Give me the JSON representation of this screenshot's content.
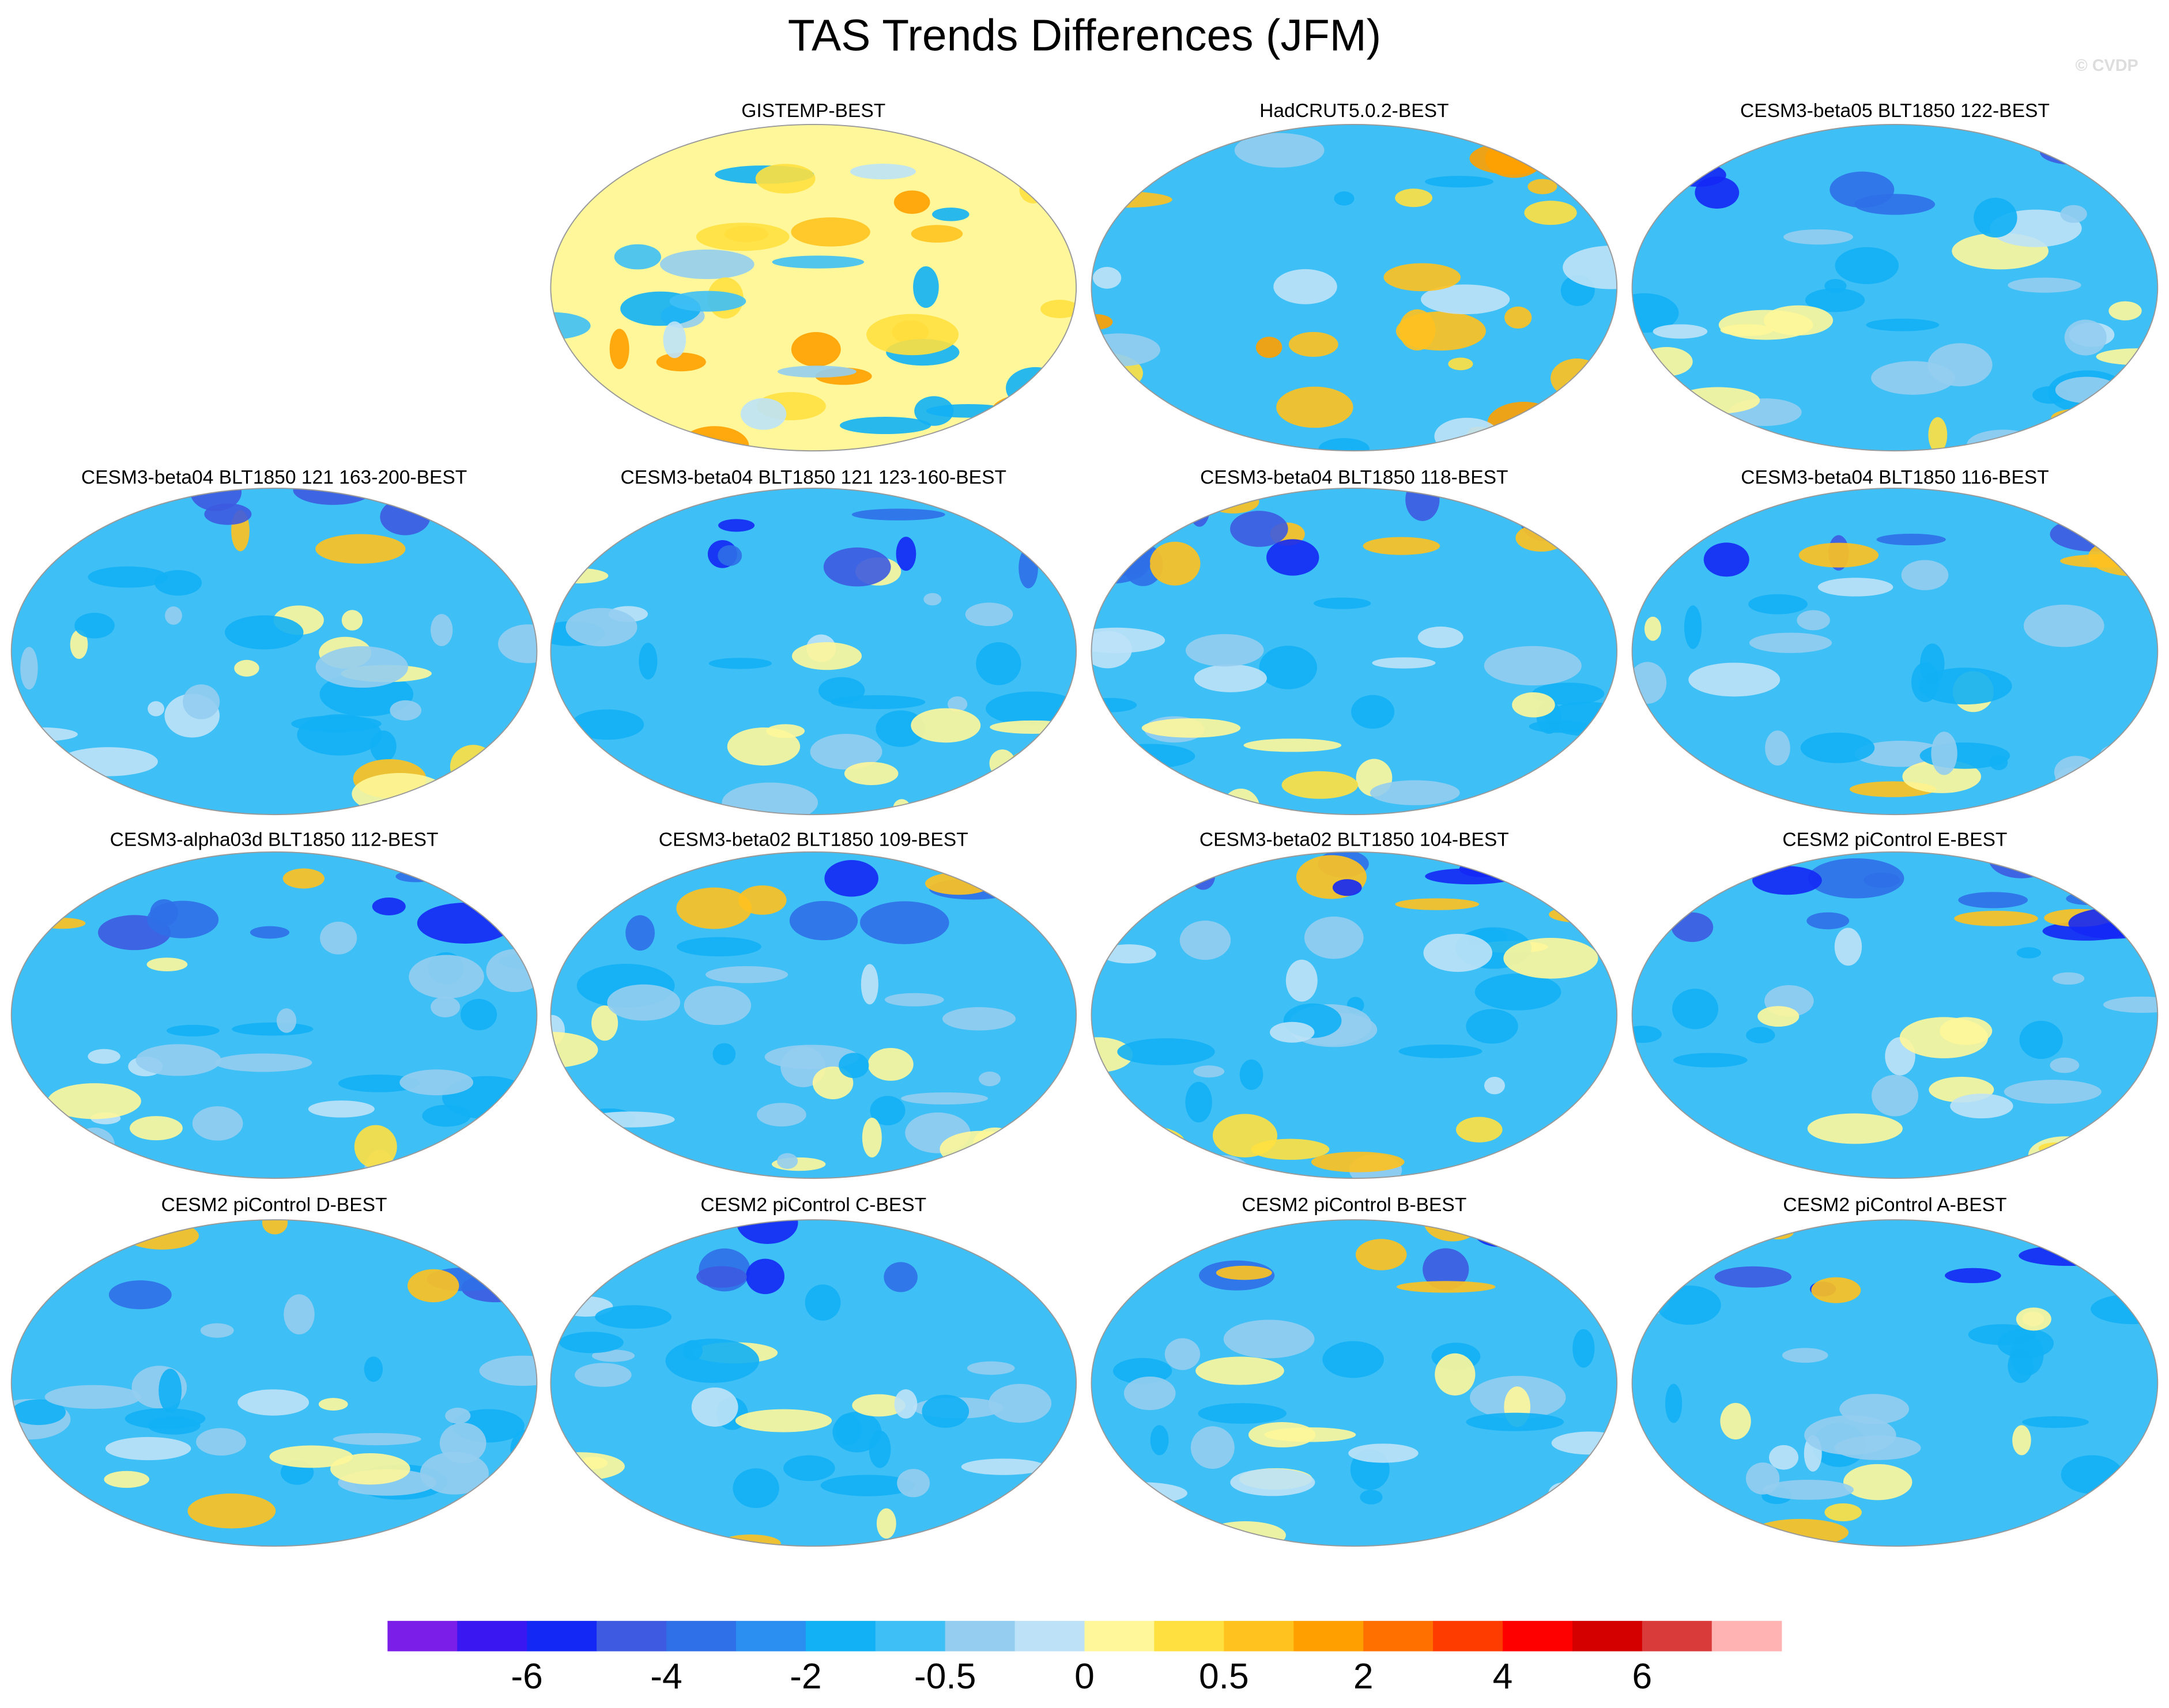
{
  "header": {
    "title": "TAS Trends Differences (JFM)",
    "watermark": "© CVDP"
  },
  "panels": [
    {
      "title": "GISTEMP-BEST"
    },
    {
      "title": "HadCRUT5.0.2-BEST"
    },
    {
      "title": "CESM3-beta05 BLT1850 122-BEST"
    },
    {
      "title": "CESM3-beta04 BLT1850 121 163-200-BEST"
    },
    {
      "title": "CESM3-beta04 BLT1850 121 123-160-BEST"
    },
    {
      "title": "CESM3-beta04 BLT1850 118-BEST"
    },
    {
      "title": "CESM3-beta04 BLT1850 116-BEST"
    },
    {
      "title": "CESM3-alpha03d BLT1850 112-BEST"
    },
    {
      "title": "CESM3-beta02 BLT1850 109-BEST"
    },
    {
      "title": "CESM3-beta02 BLT1850 104-BEST"
    },
    {
      "title": "CESM2 piControl E-BEST"
    },
    {
      "title": "CESM2 piControl D-BEST"
    },
    {
      "title": "CESM2 piControl C-BEST"
    },
    {
      "title": "CESM2 piControl B-BEST"
    },
    {
      "title": "CESM2 piControl A-BEST"
    }
  ],
  "colorbar": {
    "colors": [
      "#7b1fe8",
      "#3a17f0",
      "#1428f5",
      "#3d5ae0",
      "#2f6fe8",
      "#2a8ff0",
      "#12b0f5",
      "#3ebff5",
      "#94cdef",
      "#bde2f7",
      "#fff79a",
      "#ffe040",
      "#ffc21f",
      "#ffa000",
      "#ff7000",
      "#ff3c00",
      "#ff0000",
      "#d40000",
      "#d93a3a",
      "#ffb3b3"
    ],
    "labels": [
      "-6",
      "-4",
      "-2",
      "-0.5",
      "0",
      "0.5",
      "2",
      "4",
      "6"
    ]
  }
}
